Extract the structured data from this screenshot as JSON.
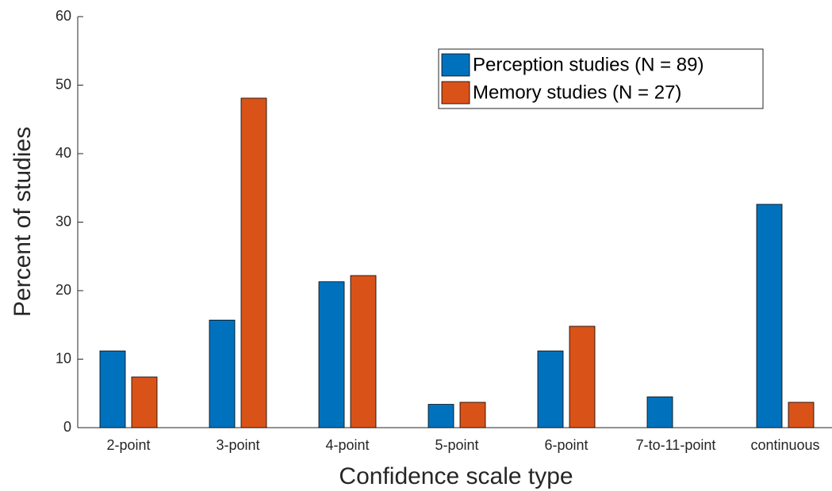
{
  "chart_data": {
    "type": "bar",
    "xlabel": "Confidence scale type",
    "ylabel": "Percent of studies",
    "categories": [
      "2-point",
      "3-point",
      "4-point",
      "5-point",
      "6-point",
      "7-to-11-point",
      "continuous"
    ],
    "series": [
      {
        "name": "Perception studies (N = 89)",
        "color": "#0072bd",
        "values": [
          11.2,
          15.7,
          21.3,
          3.4,
          11.2,
          4.5,
          32.6
        ]
      },
      {
        "name": "Memory studies (N = 27)",
        "color": "#d95319",
        "values": [
          7.4,
          48.1,
          22.2,
          3.7,
          14.8,
          0,
          3.7
        ]
      }
    ],
    "ylim": [
      0,
      60
    ],
    "yticks": [
      0,
      10,
      20,
      30,
      40,
      50,
      60
    ],
    "legend": "northeast"
  }
}
